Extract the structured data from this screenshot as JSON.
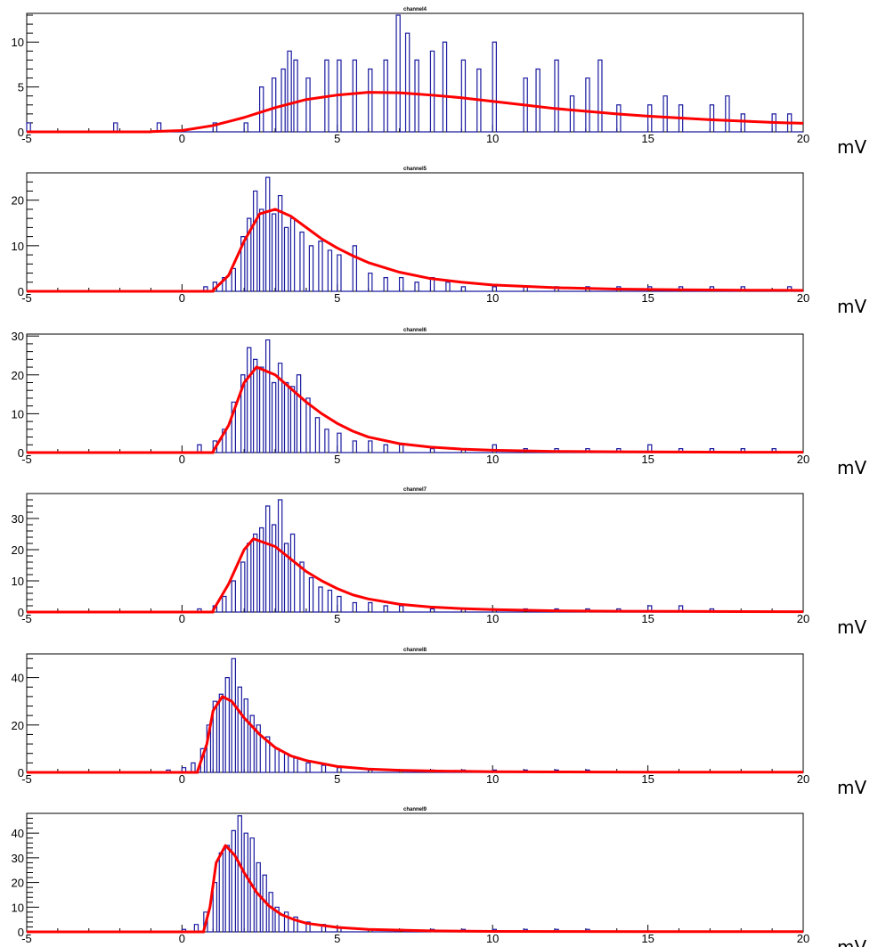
{
  "colors": {
    "histogram": "#1a1aa0",
    "fit": "#ff0000",
    "frame": "#000000"
  },
  "chart_data": [
    {
      "type": "line",
      "title": "channel4",
      "xlabel": "mV",
      "xlim": [
        -5,
        20
      ],
      "ylim": [
        0,
        13.2
      ],
      "yticks": [
        0,
        5,
        10
      ],
      "xticks": [
        "-5",
        "0",
        "5",
        "10",
        "15",
        "20"
      ],
      "fit_peak": [
        6.0,
        4.4
      ],
      "series": [
        {
          "type": "histogram",
          "x": [
            -5,
            -2.2,
            -0.8,
            1.0,
            2.0,
            2.5,
            2.9,
            3.2,
            3.4,
            3.6,
            4.0,
            4.6,
            5.0,
            5.5,
            6.0,
            6.5,
            6.9,
            7.2,
            7.5,
            8.0,
            8.4,
            9.0,
            9.5,
            10.0,
            11.0,
            11.4,
            12.0,
            12.5,
            13.0,
            13.4,
            14.0,
            15.0,
            15.5,
            16.0,
            17.0,
            17.5,
            18.0,
            19.0,
            19.5
          ],
          "y": [
            1,
            1,
            1,
            1,
            1,
            5,
            6,
            7,
            9,
            8,
            6,
            8,
            8,
            8,
            7,
            8,
            13,
            11,
            8,
            9,
            10,
            8,
            7,
            10,
            6,
            7,
            8,
            4,
            6,
            8,
            3,
            3,
            4,
            3,
            3,
            4,
            2,
            2,
            2
          ]
        },
        {
          "type": "fit",
          "x": [
            -1,
            0,
            1,
            2,
            3,
            4,
            5,
            6,
            7,
            8,
            9,
            10,
            11,
            12,
            13,
            14,
            15,
            16,
            17,
            18,
            19,
            20
          ],
          "y": [
            0.02,
            0.15,
            0.7,
            1.6,
            2.7,
            3.6,
            4.1,
            4.4,
            4.35,
            4.1,
            3.8,
            3.4,
            3.0,
            2.6,
            2.3,
            2.0,
            1.75,
            1.55,
            1.35,
            1.2,
            1.05,
            0.95
          ]
        }
      ]
    },
    {
      "type": "line",
      "title": "channel5",
      "xlabel": "mV",
      "xlim": [
        -5,
        20
      ],
      "ylim": [
        0,
        26
      ],
      "yticks": [
        0,
        10,
        20
      ],
      "xticks": [
        "-5",
        "0",
        "5",
        "10",
        "15",
        "20"
      ],
      "fit_peak": [
        2.7,
        18
      ],
      "series": [
        {
          "type": "histogram",
          "x": [
            0.7,
            1.0,
            1.3,
            1.6,
            1.9,
            2.1,
            2.3,
            2.5,
            2.7,
            2.9,
            3.1,
            3.3,
            3.5,
            3.8,
            4.1,
            4.4,
            4.7,
            5.0,
            5.5,
            6.0,
            6.5,
            7.0,
            7.5,
            8.0,
            8.5,
            9.0,
            10.0,
            11.0,
            12.0,
            13.0,
            14.0,
            15.0,
            16.0,
            17.0,
            18.0,
            19.5
          ],
          "y": [
            1,
            2,
            3,
            5,
            12,
            16,
            22,
            18,
            25,
            17,
            21,
            14,
            16,
            13,
            10,
            11,
            9,
            8,
            10,
            4,
            3,
            3,
            2,
            3,
            2,
            1,
            1,
            1,
            1,
            1,
            1,
            1,
            1,
            1,
            1,
            1
          ]
        },
        {
          "type": "fit",
          "x": [
            1,
            1.5,
            2,
            2.5,
            3,
            3.5,
            4,
            4.5,
            5,
            5.5,
            6,
            7,
            8,
            9,
            10,
            12,
            14,
            16,
            18,
            20
          ],
          "y": [
            0.2,
            3.5,
            11,
            17,
            18,
            16.5,
            14,
            11.5,
            9.5,
            7.8,
            6.3,
            4.2,
            2.8,
            2.0,
            1.4,
            0.8,
            0.5,
            0.35,
            0.25,
            0.2
          ]
        }
      ]
    },
    {
      "type": "line",
      "title": "channel6",
      "xlabel": "mV",
      "xlim": [
        -5,
        20
      ],
      "ylim": [
        0,
        30.5
      ],
      "yticks": [
        0,
        10,
        20,
        30
      ],
      "xticks": [
        "-5",
        "0",
        "5",
        "10",
        "15",
        "20"
      ],
      "fit_peak": [
        2.4,
        22
      ],
      "series": [
        {
          "type": "histogram",
          "x": [
            0.5,
            1.0,
            1.3,
            1.6,
            1.9,
            2.1,
            2.3,
            2.5,
            2.7,
            2.9,
            3.1,
            3.3,
            3.5,
            3.7,
            4.0,
            4.3,
            4.6,
            5.0,
            5.5,
            6.0,
            6.5,
            7.0,
            8.0,
            9.0,
            10.0,
            11.0,
            12.0,
            13.0,
            14.0,
            15.0,
            16.0,
            17.0,
            18.0,
            19.0
          ],
          "y": [
            2,
            3,
            6,
            13,
            20,
            27,
            24,
            22,
            29,
            18,
            23,
            18,
            17,
            20,
            14,
            9,
            6,
            5,
            3,
            3,
            2,
            2,
            1,
            1,
            2,
            1,
            1,
            1,
            1,
            2,
            1,
            1,
            1,
            1
          ]
        },
        {
          "type": "fit",
          "x": [
            1,
            1.5,
            2,
            2.4,
            3,
            3.5,
            4,
            4.5,
            5,
            5.5,
            6,
            7,
            8,
            9,
            10,
            12,
            14,
            16,
            18,
            20
          ],
          "y": [
            0.3,
            7,
            18,
            22,
            20,
            16.5,
            13,
            10,
            7.5,
            5.5,
            4.0,
            2.3,
            1.4,
            0.9,
            0.6,
            0.3,
            0.2,
            0.15,
            0.1,
            0.1
          ]
        }
      ]
    },
    {
      "type": "line",
      "title": "channel7",
      "xlabel": "mV",
      "xlim": [
        -5,
        20
      ],
      "ylim": [
        0,
        38
      ],
      "yticks": [
        0,
        10,
        20,
        30
      ],
      "xticks": [
        "-5",
        "0",
        "5",
        "10",
        "15",
        "20"
      ],
      "fit_peak": [
        2.3,
        23.5
      ],
      "series": [
        {
          "type": "histogram",
          "x": [
            0.5,
            1.0,
            1.3,
            1.6,
            1.9,
            2.1,
            2.3,
            2.5,
            2.7,
            2.9,
            3.1,
            3.3,
            3.5,
            3.8,
            4.1,
            4.4,
            4.7,
            5.0,
            5.5,
            6.0,
            6.5,
            7.0,
            8.0,
            9.0,
            10.0,
            11.0,
            12.0,
            13.0,
            14.0,
            15.0,
            16.0,
            17.0
          ],
          "y": [
            1,
            2,
            5,
            10,
            16,
            22,
            25,
            27,
            34,
            28,
            36,
            22,
            25,
            16,
            11,
            8,
            7,
            5,
            3,
            3,
            2,
            2,
            1,
            1,
            1,
            1,
            1,
            1,
            1,
            2,
            2,
            1
          ]
        },
        {
          "type": "fit",
          "x": [
            1,
            1.5,
            2,
            2.3,
            3,
            3.5,
            4,
            4.5,
            5,
            5.5,
            6,
            7,
            8,
            9,
            10,
            12,
            14,
            16,
            18,
            20
          ],
          "y": [
            0.5,
            9,
            20,
            23.5,
            21,
            17,
            13,
            10,
            7.5,
            5.5,
            4.2,
            2.5,
            1.6,
            1.1,
            0.8,
            0.4,
            0.25,
            0.2,
            0.15,
            0.1
          ]
        }
      ]
    },
    {
      "type": "line",
      "title": "channel8",
      "xlabel": "mV",
      "xlim": [
        -5,
        20
      ],
      "ylim": [
        0,
        50
      ],
      "yticks": [
        0,
        20,
        40
      ],
      "xticks": [
        "-5",
        "0",
        "5",
        "10",
        "15",
        "20"
      ],
      "fit_peak": [
        1.3,
        32
      ],
      "series": [
        {
          "type": "histogram",
          "x": [
            -0.5,
            0.0,
            0.3,
            0.6,
            0.8,
            1.0,
            1.2,
            1.4,
            1.6,
            1.8,
            2.0,
            2.2,
            2.4,
            2.7,
            3.0,
            3.3,
            3.6,
            4.0,
            4.5,
            5.0,
            6.0,
            7.0,
            8.0,
            9.0,
            10.0,
            11.0,
            12.0,
            13.0
          ],
          "y": [
            1,
            2,
            4,
            10,
            20,
            30,
            33,
            40,
            48,
            36,
            31,
            24,
            20,
            15,
            10,
            8,
            6,
            4,
            3,
            2,
            1,
            1,
            1,
            1,
            1,
            1,
            1,
            1
          ]
        },
        {
          "type": "fit",
          "x": [
            0.5,
            0.8,
            1.0,
            1.3,
            1.6,
            2.0,
            2.5,
            3.0,
            3.5,
            4.0,
            5.0,
            6.0,
            7.0,
            8.0,
            10.0,
            12.0,
            15.0,
            20.0
          ],
          "y": [
            0.5,
            12,
            26,
            32,
            30,
            23,
            16,
            10.5,
            7,
            5,
            2.5,
            1.4,
            0.9,
            0.6,
            0.3,
            0.2,
            0.1,
            0.1
          ]
        }
      ]
    },
    {
      "type": "line",
      "title": "channel9",
      "xlabel": "mV",
      "xlim": [
        -5,
        20
      ],
      "ylim": [
        0,
        48
      ],
      "yticks": [
        0,
        10,
        20,
        30,
        40
      ],
      "xticks": [
        "-5",
        "0",
        "5",
        "10",
        "15",
        "20"
      ],
      "fit_peak": [
        1.4,
        35
      ],
      "series": [
        {
          "type": "histogram",
          "x": [
            0.0,
            0.4,
            0.7,
            1.0,
            1.2,
            1.4,
            1.6,
            1.8,
            2.0,
            2.2,
            2.4,
            2.6,
            2.8,
            3.0,
            3.3,
            3.6,
            4.0,
            4.5,
            5.0,
            6.0,
            7.0,
            8.0,
            9.0,
            10.0,
            11.0,
            12.0,
            13.0
          ],
          "y": [
            1,
            3,
            8,
            20,
            32,
            35,
            41,
            47,
            40,
            38,
            28,
            23,
            16,
            10,
            8,
            6,
            4,
            3,
            2,
            1,
            1,
            1,
            1,
            1,
            1,
            1,
            1
          ]
        },
        {
          "type": "fit",
          "x": [
            0.7,
            0.9,
            1.1,
            1.4,
            1.7,
            2.0,
            2.4,
            2.8,
            3.2,
            3.6,
            4.0,
            5.0,
            6.0,
            8.0,
            10.0,
            12.0,
            15.0,
            20.0
          ],
          "y": [
            0.5,
            10,
            28,
            35,
            31,
            24,
            16,
            10.5,
            7,
            5,
            3.5,
            1.8,
            1.0,
            0.4,
            0.2,
            0.15,
            0.1,
            0.1
          ]
        }
      ]
    }
  ]
}
